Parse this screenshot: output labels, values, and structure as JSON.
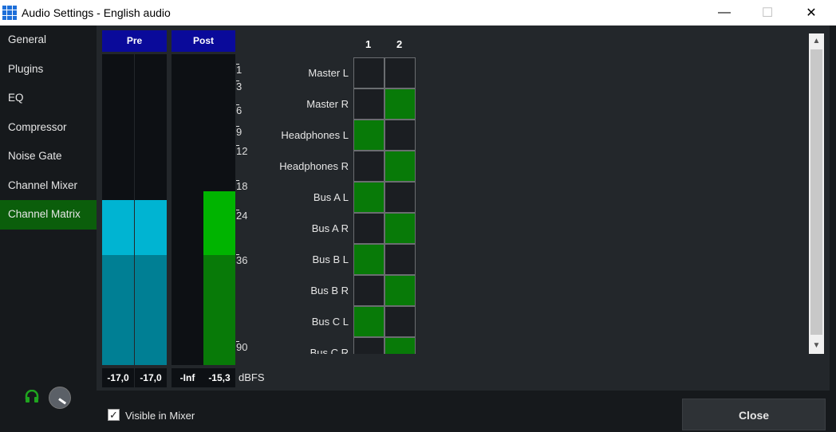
{
  "window": {
    "title": "Audio Settings - English audio",
    "minimize": "—",
    "maximize": "☐",
    "close": "✕"
  },
  "sidebar": {
    "items": [
      {
        "label": "General"
      },
      {
        "label": "Plugins"
      },
      {
        "label": "EQ"
      },
      {
        "label": "Compressor"
      },
      {
        "label": "Noise Gate"
      },
      {
        "label": "Channel Mixer"
      },
      {
        "label": "Channel Matrix",
        "active": true
      }
    ]
  },
  "meters": {
    "pre_label": "Pre",
    "post_label": "Post",
    "unit": "dBFS",
    "channels": [
      {
        "group": "Pre",
        "value": "-17,0",
        "level": 0.53
      },
      {
        "group": "Pre",
        "value": "-17,0",
        "level": 0.53
      },
      {
        "group": "Post",
        "value": "-Inf",
        "level": 0
      },
      {
        "group": "Post",
        "value": "-15,3",
        "level": 0.56
      }
    ],
    "scale": [
      "1",
      "3",
      "6",
      "9",
      "12",
      "18",
      "24",
      "36",
      "90"
    ],
    "colors": {
      "pre_peak": "#00b4d2",
      "pre": "#007f94",
      "post_peak": "#00b400",
      "post": "#087a08"
    }
  },
  "matrix": {
    "columns": [
      "1",
      "2"
    ],
    "rows": [
      {
        "label": "Master L",
        "on": [
          false,
          false
        ]
      },
      {
        "label": "Master R",
        "on": [
          false,
          true
        ]
      },
      {
        "label": "Headphones L",
        "on": [
          true,
          false
        ]
      },
      {
        "label": "Headphones R",
        "on": [
          false,
          true
        ]
      },
      {
        "label": "Bus A L",
        "on": [
          true,
          false
        ]
      },
      {
        "label": "Bus A R",
        "on": [
          false,
          true
        ]
      },
      {
        "label": "Bus B L",
        "on": [
          true,
          false
        ]
      },
      {
        "label": "Bus B R",
        "on": [
          false,
          true
        ]
      },
      {
        "label": "Bus C L",
        "on": [
          true,
          false
        ]
      },
      {
        "label": "Bus C R",
        "on": [
          false,
          true
        ]
      }
    ]
  },
  "footer": {
    "visible_in_mixer": "Visible in Mixer",
    "visible_checked": true,
    "close_label": "Close",
    "icons": [
      "headphones-icon",
      "volume-knob-icon"
    ]
  }
}
